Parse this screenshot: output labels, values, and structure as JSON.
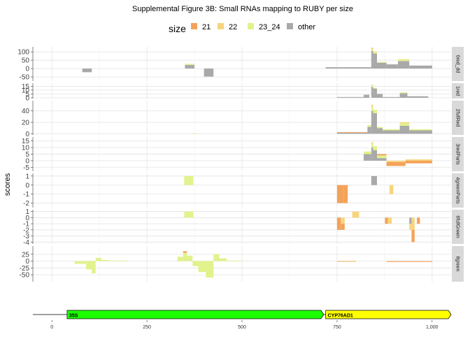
{
  "chart_data": {
    "type": "bar",
    "title": "Supplemental Figure 3B: Small RNAs mapping to RUBY per size",
    "ylabel": "scores",
    "legend": {
      "title": "size",
      "position": "top",
      "entries": [
        {
          "label": "21",
          "color": "#F4A259"
        },
        {
          "label": "22",
          "color": "#F7D57E"
        },
        {
          "label": "23_24",
          "color": "#E2F28C"
        },
        {
          "label": "other",
          "color": "#A9A9A9"
        }
      ]
    },
    "xlim": [
      -50,
      1050
    ],
    "x_ticks": [
      0,
      250,
      500,
      750,
      1000
    ],
    "x_tick_labels": [
      "0",
      "250",
      "500",
      "750",
      "1,000"
    ],
    "x_ticks_minor": [
      125,
      375,
      625,
      875
    ],
    "panels": [
      {
        "strip": "0red_dd",
        "ylim": [
          -75,
          130
        ],
        "y_ticks": [
          100,
          50,
          0,
          -50
        ],
        "y_tick_labels": [
          "100",
          "50",
          "0",
          "-50"
        ],
        "bars": [
          {
            "x": [
              80,
              105
            ],
            "values": {
              "other": -22
            }
          },
          {
            "x": [
              350,
              375
            ],
            "values": {
              "other": 22,
              "23_24": 6
            }
          },
          {
            "x": [
              400,
              425
            ],
            "values": {
              "other": -48
            }
          },
          {
            "x": [
              720,
              840
            ],
            "values": {
              "other": 8
            }
          },
          {
            "x": [
              840,
              845
            ],
            "values": {
              "other": 105,
              "23_24": 10,
              "22": 5,
              "21": 4
            }
          },
          {
            "x": [
              845,
              855
            ],
            "values": {
              "other": 90,
              "23_24": 8,
              "22": 4
            }
          },
          {
            "x": [
              855,
              880
            ],
            "values": {
              "other": 35,
              "23_24": 5
            }
          },
          {
            "x": [
              880,
              910
            ],
            "values": {
              "other": 25
            }
          },
          {
            "x": [
              910,
              940
            ],
            "values": {
              "other": 45,
              "23_24": 8,
              "22": 3
            }
          },
          {
            "x": [
              940,
              1000
            ],
            "values": {
              "other": 18
            }
          }
        ]
      },
      {
        "strip": "1red",
        "ylim": [
          -1,
          19
        ],
        "y_ticks": [
          15,
          10,
          5,
          0
        ],
        "y_tick_labels": [
          "15",
          "10",
          "5",
          "0"
        ],
        "bars": [
          {
            "x": [
              750,
              820
            ],
            "values": {
              "other": 1
            }
          },
          {
            "x": [
              820,
              835
            ],
            "values": {
              "other": 4
            }
          },
          {
            "x": [
              840,
              845
            ],
            "values": {
              "other": 14,
              "23_24": 2,
              "22": 1
            }
          },
          {
            "x": [
              845,
              855
            ],
            "values": {
              "other": 12,
              "23_24": 1
            }
          },
          {
            "x": [
              855,
              870
            ],
            "values": {
              "other": 5
            }
          },
          {
            "x": [
              870,
              915
            ],
            "values": {
              "other": 1
            }
          },
          {
            "x": [
              915,
              935
            ],
            "values": {
              "other": 6,
              "23_24": 1
            }
          },
          {
            "x": [
              935,
              990
            ],
            "values": {
              "other": 2
            }
          }
        ]
      },
      {
        "strip": "2fullRed",
        "ylim": [
          -2,
          58
        ],
        "y_ticks": [
          40,
          20,
          0
        ],
        "y_tick_labels": [
          "40",
          "20",
          "0"
        ],
        "bars": [
          {
            "x": [
              370,
              380
            ],
            "values": {
              "23_24": 1
            }
          },
          {
            "x": [
              750,
              830
            ],
            "values": {
              "other": 2,
              "21": 1
            }
          },
          {
            "x": [
              830,
              840
            ],
            "values": {
              "other": 12,
              "23_24": 3
            }
          },
          {
            "x": [
              840,
              845
            ],
            "values": {
              "other": 40,
              "23_24": 8,
              "22": 3
            }
          },
          {
            "x": [
              845,
              855
            ],
            "values": {
              "other": 36,
              "23_24": 6
            }
          },
          {
            "x": [
              855,
              870
            ],
            "values": {
              "other": 10,
              "23_24": 2
            }
          },
          {
            "x": [
              870,
              915
            ],
            "values": {
              "other": 6,
              "23_24": 2
            }
          },
          {
            "x": [
              915,
              940
            ],
            "values": {
              "other": 14,
              "23_24": 4,
              "22": 2
            }
          },
          {
            "x": [
              940,
              1000
            ],
            "values": {
              "other": 6,
              "23_24": 2
            }
          }
        ]
      },
      {
        "strip": "3redParts",
        "ylim": [
          -8,
          18
        ],
        "y_ticks": [
          15,
          10,
          5,
          0,
          -5
        ],
        "y_tick_labels": [
          "15",
          "10",
          "5",
          "0",
          "-5"
        ],
        "bars": [
          {
            "x": [
              820,
              840
            ],
            "values": {
              "other": 5,
              "23_24": 2
            }
          },
          {
            "x": [
              840,
              845
            ],
            "values": {
              "other": 10,
              "23_24": 3,
              "22": 1
            }
          },
          {
            "x": [
              845,
              855
            ],
            "values": {
              "other": 8,
              "23_24": 3
            }
          },
          {
            "x": [
              855,
              880
            ],
            "values": {
              "other": 2,
              "23_24": 2,
              "21": 1
            }
          },
          {
            "x": [
              880,
              930
            ],
            "values": {
              "21": -3,
              "22": -1
            }
          },
          {
            "x": [
              930,
              1000
            ],
            "values": {
              "21": -2,
              "22": 1
            }
          }
        ]
      },
      {
        "strip": "4greenParts",
        "ylim": [
          -2.5,
          1.3
        ],
        "y_ticks": [
          1,
          0,
          -1,
          -2
        ],
        "y_tick_labels": [
          "1",
          "0",
          "-1",
          "-2"
        ],
        "bars": [
          {
            "x": [
              348,
              372
            ],
            "values": {
              "23_24": 1
            }
          },
          {
            "x": [
              750,
              768
            ],
            "values": {
              "21": -2
            }
          },
          {
            "x": [
              768,
              778
            ],
            "values": {
              "21": -2
            }
          },
          {
            "x": [
              840,
              855
            ],
            "values": {
              "other": 1
            }
          },
          {
            "x": [
              888,
              898
            ],
            "values": {
              "22": -1
            }
          }
        ]
      },
      {
        "strip": "6fullGreen",
        "ylim": [
          -4.3,
          1.3
        ],
        "y_ticks": [
          1,
          0,
          -1,
          -2,
          -3,
          -4
        ],
        "y_tick_labels": [
          "1",
          "0",
          "-1",
          "-2",
          "-3",
          "-4"
        ],
        "bars": [
          {
            "x": [
              348,
              372
            ],
            "values": {
              "23_24": 1
            }
          },
          {
            "x": [
              750,
              760
            ],
            "values": {
              "21": -2
            }
          },
          {
            "x": [
              760,
              770
            ],
            "values": {
              "21": -1,
              "22": -1
            }
          },
          {
            "x": [
              790,
              808
            ],
            "values": {
              "22": 1
            }
          },
          {
            "x": [
              876,
              884
            ],
            "values": {
              "21": -1
            }
          },
          {
            "x": [
              884,
              894
            ],
            "values": {
              "22": -1
            }
          },
          {
            "x": [
              940,
              946
            ],
            "values": {
              "other": -1,
              "22": -1
            }
          },
          {
            "x": [
              946,
              954
            ],
            "values": {
              "21": -2,
              "22": -2
            }
          },
          {
            "x": [
              960,
              968
            ],
            "values": {
              "21": -1
            }
          }
        ]
      },
      {
        "strip": "8green",
        "ylim": [
          -75,
          55
        ],
        "y_ticks": [
          25,
          0,
          -25,
          -50
        ],
        "y_tick_labels": [
          "25",
          "0",
          "-25",
          "-50"
        ],
        "bars": [
          {
            "x": [
              60,
              90
            ],
            "values": {
              "23_24": -10
            }
          },
          {
            "x": [
              90,
              105
            ],
            "values": {
              "23_24": -30
            }
          },
          {
            "x": [
              105,
              115
            ],
            "values": {
              "23_24": -45
            }
          },
          {
            "x": [
              115,
              130
            ],
            "values": {
              "23_24": 12
            }
          },
          {
            "x": [
              130,
              150
            ],
            "values": {
              "23_24": 4
            }
          },
          {
            "x": [
              150,
              200
            ],
            "values": {
              "23_24": 2
            }
          },
          {
            "x": [
              330,
              345
            ],
            "values": {
              "23_24": 16
            }
          },
          {
            "x": [
              345,
              355
            ],
            "values": {
              "23_24": 30,
              "21": 6
            }
          },
          {
            "x": [
              355,
              370
            ],
            "values": {
              "23_24": 20
            }
          },
          {
            "x": [
              370,
              385
            ],
            "values": {
              "23_24": -18
            }
          },
          {
            "x": [
              385,
              405
            ],
            "values": {
              "23_24": -40
            }
          },
          {
            "x": [
              405,
              425
            ],
            "values": {
              "23_24": -60
            }
          },
          {
            "x": [
              425,
              440
            ],
            "values": {
              "23_24": 26
            }
          },
          {
            "x": [
              440,
              460
            ],
            "values": {
              "23_24": 10
            }
          },
          {
            "x": [
              460,
              500
            ],
            "values": {
              "23_24": 2
            }
          },
          {
            "x": [
              750,
              800
            ],
            "values": {
              "21": -2,
              "23_24": 1
            }
          },
          {
            "x": [
              880,
              1000
            ],
            "values": {
              "21": -3
            }
          }
        ]
      }
    ],
    "annotations": [
      {
        "label": "35S",
        "start": 40,
        "end": 715,
        "color": "#1CFF00"
      },
      {
        "label": "CYP76AD1",
        "start": 720,
        "end": 1050,
        "color": "#FFFF00"
      }
    ]
  }
}
